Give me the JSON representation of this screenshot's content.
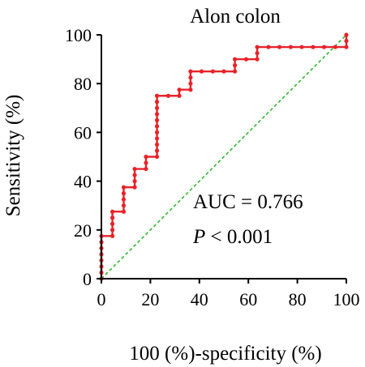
{
  "chart_data": {
    "type": "line",
    "title": "Alon colon",
    "xlabel": "100 (%)-specificity (%)",
    "ylabel": "Sensitivity (%)",
    "xlim": [
      0,
      100
    ],
    "ylim": [
      0,
      100
    ],
    "xticks": [
      "0",
      "20",
      "40",
      "60",
      "80",
      "100"
    ],
    "yticks": [
      "0",
      "20",
      "40",
      "60",
      "80",
      "100"
    ],
    "grid": false,
    "series": [
      {
        "color": "#e8232a",
        "style": "solid-with-markers",
        "points": [
          [
            0,
            0
          ],
          [
            0,
            2.5
          ],
          [
            0,
            5
          ],
          [
            0,
            7.5
          ],
          [
            0,
            10
          ],
          [
            0,
            12.5
          ],
          [
            0,
            15
          ],
          [
            0,
            17.5
          ],
          [
            4.5,
            17.5
          ],
          [
            4.5,
            20
          ],
          [
            4.5,
            22.5
          ],
          [
            4.5,
            25
          ],
          [
            4.5,
            27.5
          ],
          [
            9.1,
            27.5
          ],
          [
            9.1,
            30
          ],
          [
            9.1,
            32.5
          ],
          [
            9.1,
            35
          ],
          [
            9.1,
            37.5
          ],
          [
            13.6,
            37.5
          ],
          [
            13.6,
            40
          ],
          [
            13.6,
            42.5
          ],
          [
            13.6,
            45
          ],
          [
            18.2,
            45
          ],
          [
            18.2,
            47.5
          ],
          [
            18.2,
            50
          ],
          [
            22.7,
            50
          ],
          [
            22.7,
            52.5
          ],
          [
            22.7,
            55
          ],
          [
            22.7,
            57.5
          ],
          [
            22.7,
            60
          ],
          [
            22.7,
            62.5
          ],
          [
            22.7,
            65
          ],
          [
            22.7,
            67.5
          ],
          [
            22.7,
            70
          ],
          [
            22.7,
            72.5
          ],
          [
            22.7,
            75
          ],
          [
            27.3,
            75
          ],
          [
            31.8,
            75
          ],
          [
            31.8,
            77.5
          ],
          [
            36.4,
            77.5
          ],
          [
            36.4,
            80
          ],
          [
            36.4,
            82.5
          ],
          [
            36.4,
            85
          ],
          [
            40.9,
            85
          ],
          [
            45.5,
            85
          ],
          [
            50,
            85
          ],
          [
            54.5,
            85
          ],
          [
            54.5,
            87.5
          ],
          [
            54.5,
            90
          ],
          [
            59.1,
            90
          ],
          [
            63.6,
            90
          ],
          [
            63.6,
            92.5
          ],
          [
            63.6,
            95
          ],
          [
            68.2,
            95
          ],
          [
            72.7,
            95
          ],
          [
            77.3,
            95
          ],
          [
            81.8,
            95
          ],
          [
            86.4,
            95
          ],
          [
            90.9,
            95
          ],
          [
            95.5,
            95
          ],
          [
            100,
            95
          ],
          [
            100,
            97.5
          ],
          [
            100,
            100
          ]
        ]
      },
      {
        "color": "#2eb82e",
        "style": "dashed",
        "points": [
          [
            0,
            0
          ],
          [
            100,
            100
          ]
        ]
      }
    ],
    "annotations": {
      "auc": "AUC = 0.766",
      "p_symbol": "P",
      "p_value": " < 0.001"
    }
  }
}
